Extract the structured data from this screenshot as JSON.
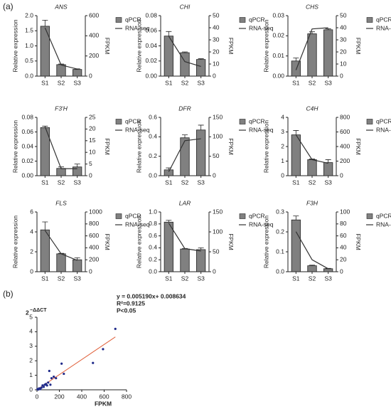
{
  "panel_labels": [
    "(a)",
    "(b)"
  ],
  "chart_data": [
    {
      "type": "bar",
      "title": "ANS",
      "categories": [
        "S1",
        "S2",
        "S3"
      ],
      "ylabel": "Relative expression",
      "y2label": "FPKM",
      "ylim": [
        0,
        2
      ],
      "yticks": [
        {
          "value": 0,
          "label": "0.0"
        },
        0.5,
        {
          "value": 1,
          "label": "1.0"
        },
        1.5,
        {
          "value": 2,
          "label": "2.0"
        }
      ],
      "y2lim": [
        0,
        600
      ],
      "y2ticks": [
        0,
        200,
        400,
        600
      ],
      "series": [
        {
          "name": "qPCR",
          "color": "#808080",
          "values": [
            1.65,
            0.38,
            0.22
          ],
          "errors": [
            0.2,
            0.02,
            0.02
          ]
        },
        {
          "name": "RNA-seq",
          "color": "#333333",
          "axis": "y2",
          "values": [
            480,
            110,
            70
          ]
        }
      ]
    },
    {
      "type": "bar",
      "title": "CHI",
      "categories": [
        "S1",
        "S2",
        "S3"
      ],
      "ylabel": "Relative expression",
      "y2label": "FPKM",
      "ylim": [
        0,
        0.08
      ],
      "yticks": [
        {
          "value": 0,
          "label": "0.00"
        },
        0.02,
        0.04,
        0.06,
        0.08
      ],
      "y2lim": [
        0,
        50
      ],
      "y2ticks": [
        0,
        10,
        20,
        30,
        40,
        50
      ],
      "series": [
        {
          "name": "qPCR",
          "color": "#808080",
          "values": [
            0.053,
            0.031,
            0.022
          ],
          "errors": [
            0.006,
            0.001,
            0.001
          ]
        },
        {
          "name": "RNA-seq",
          "color": "#333333",
          "axis": "y2",
          "values": [
            33,
            12,
            8
          ]
        }
      ]
    },
    {
      "type": "bar",
      "title": "CHS",
      "categories": [
        "S1",
        "S2",
        "S3"
      ],
      "ylabel": "Relative expression",
      "y2label": "FPKM",
      "ylim": [
        0,
        0.03
      ],
      "yticks": [
        {
          "value": 0,
          "label": "0.00"
        },
        0.01,
        0.02,
        0.03
      ],
      "y2lim": [
        0,
        50
      ],
      "y2ticks": [
        0,
        10,
        20,
        30,
        40,
        50
      ],
      "series": [
        {
          "name": "qPCR",
          "color": "#808080",
          "values": [
            0.0075,
            0.021,
            0.023
          ],
          "errors": [
            0.0015,
            0.001,
            0.0005
          ]
        },
        {
          "name": "RNA-seq",
          "color": "#333333",
          "axis": "y2",
          "values": [
            5,
            39,
            40
          ]
        }
      ]
    },
    {
      "type": "bar",
      "title": "F3'H",
      "categories": [
        "S1",
        "S2",
        "S3"
      ],
      "ylabel": "Relative expression",
      "y2label": "FPKM",
      "ylim": [
        0,
        0.08
      ],
      "yticks": [
        {
          "value": 0,
          "label": "0.00"
        },
        0.02,
        0.04,
        0.06,
        0.08
      ],
      "y2lim": [
        0,
        25
      ],
      "y2ticks": [
        0,
        5,
        10,
        15,
        20,
        25
      ],
      "series": [
        {
          "name": "qPCR",
          "color": "#808080",
          "values": [
            0.066,
            0.01,
            0.012
          ],
          "errors": [
            0.002,
            0.002,
            0.004
          ]
        },
        {
          "name": "RNA-seq",
          "color": "#333333",
          "axis": "y2",
          "values": [
            21,
            3,
            3
          ]
        }
      ]
    },
    {
      "type": "bar",
      "title": "DFR",
      "categories": [
        "S1",
        "S2",
        "S3"
      ],
      "ylabel": "Relative expression",
      "y2label": "FPKM",
      "ylim": [
        0,
        0.6
      ],
      "yticks": [
        {
          "value": 0,
          "label": "0.0"
        },
        0.2,
        0.4,
        0.6
      ],
      "y2lim": [
        0,
        150
      ],
      "y2ticks": [
        0,
        50,
        100,
        150
      ],
      "series": [
        {
          "name": "qPCR",
          "color": "#808080",
          "values": [
            0.06,
            0.39,
            0.47
          ],
          "errors": [
            0.02,
            0.03,
            0.05
          ]
        },
        {
          "name": "RNA-seq",
          "color": "#333333",
          "axis": "y2",
          "values": [
            10,
            90,
            95
          ]
        }
      ]
    },
    {
      "type": "bar",
      "title": "C4H",
      "categories": [
        "S1",
        "S2",
        "S3"
      ],
      "ylabel": "Relative expression",
      "y2label": "FPKM",
      "ylim": [
        0,
        4
      ],
      "yticks": [
        0,
        1,
        2,
        3,
        4
      ],
      "y2lim": [
        0,
        800
      ],
      "y2ticks": [
        0,
        200,
        400,
        600,
        800
      ],
      "series": [
        {
          "name": "qPCR",
          "color": "#808080",
          "values": [
            2.8,
            1.1,
            0.9
          ],
          "errors": [
            0.3,
            0.05,
            0.2
          ]
        },
        {
          "name": "RNA-seq",
          "color": "#333333",
          "axis": "y2",
          "values": [
            560,
            220,
            170
          ]
        }
      ]
    },
    {
      "type": "bar",
      "title": "FLS",
      "categories": [
        "S1",
        "S2",
        "S3"
      ],
      "ylabel": "Relative expression",
      "y2label": "FPKM",
      "ylim": [
        0,
        6
      ],
      "yticks": [
        0,
        2,
        4,
        6
      ],
      "y2lim": [
        0,
        1000
      ],
      "y2ticks": [
        0,
        200,
        400,
        600,
        800,
        1000
      ],
      "series": [
        {
          "name": "qPCR",
          "color": "#808080",
          "values": [
            4.2,
            1.8,
            1.2
          ],
          "errors": [
            0.8,
            0.05,
            0.2
          ]
        },
        {
          "name": "RNA-seq",
          "color": "#333333",
          "axis": "y2",
          "values": [
            690,
            300,
            190
          ]
        }
      ]
    },
    {
      "type": "bar",
      "title": "LAR",
      "categories": [
        "S1",
        "S2",
        "S3"
      ],
      "ylabel": "Relative expression",
      "y2label": "FPKM",
      "ylim": [
        0,
        1
      ],
      "yticks": [
        {
          "value": 0,
          "label": "0.0"
        },
        0.2,
        0.4,
        0.6,
        0.8,
        {
          "value": 1,
          "label": "1.0"
        }
      ],
      "y2lim": [
        0,
        150
      ],
      "y2ticks": [
        0,
        50,
        100,
        150
      ],
      "series": [
        {
          "name": "qPCR",
          "color": "#808080",
          "values": [
            0.83,
            0.38,
            0.37
          ],
          "errors": [
            0.03,
            0.01,
            0.03
          ]
        },
        {
          "name": "RNA-seq",
          "color": "#333333",
          "axis": "y2",
          "values": [
            122,
            58,
            52
          ]
        }
      ]
    },
    {
      "type": "bar",
      "title": "F3H",
      "categories": [
        "S1",
        "S2",
        "S3"
      ],
      "ylabel": "Relative expression",
      "y2label": "FPKM",
      "ylim": [
        0,
        0.3
      ],
      "yticks": [
        {
          "value": 0,
          "label": "0.0"
        },
        0.1,
        0.2,
        0.3
      ],
      "y2lim": [
        0,
        100
      ],
      "y2ticks": [
        0,
        20,
        40,
        60,
        80,
        100
      ],
      "series": [
        {
          "name": "qPCR",
          "color": "#808080",
          "values": [
            0.26,
            0.03,
            0.015
          ],
          "errors": [
            0.02,
            0.003,
            0.002
          ]
        },
        {
          "name": "RNA-seq",
          "color": "#333333",
          "axis": "y2",
          "values": [
            67,
            20,
            5
          ]
        }
      ]
    },
    {
      "type": "scatter",
      "xlabel": "FPKM",
      "ylabel": {
        "base": "2",
        "exponent": "−ΔΔCT"
      },
      "annotations": [
        "y = 0.005190x+ 0.008634",
        "R²=0.9125",
        "P<0.05"
      ],
      "xlim": [
        0,
        800
      ],
      "xticks": [
        0,
        200,
        400,
        600,
        800
      ],
      "ylim": [
        0,
        5
      ],
      "yticks": [
        0,
        1,
        2,
        3,
        4,
        5
      ],
      "color": "#1f2a8a",
      "trendline": {
        "slope": 0.00519,
        "intercept": 0.008634,
        "color": "#e0603a"
      },
      "x": [
        5,
        10,
        20,
        30,
        40,
        50,
        60,
        70,
        80,
        90,
        100,
        110,
        120,
        130,
        150,
        170,
        220,
        240,
        500,
        590,
        700
      ],
      "y": [
        0.05,
        0.02,
        0.1,
        0.05,
        0.15,
        0.3,
        0.2,
        0.35,
        0.4,
        0.3,
        0.5,
        1.3,
        0.35,
        0.8,
        0.9,
        0.8,
        1.8,
        1.1,
        1.85,
        2.8,
        4.2
      ]
    }
  ]
}
